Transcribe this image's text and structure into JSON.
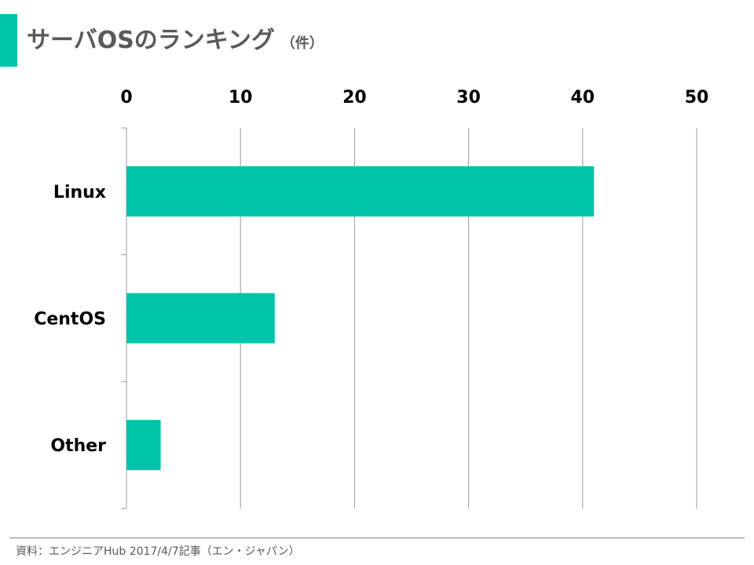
{
  "title": {
    "main": "サーバOSのランキング",
    "unit": "（件）"
  },
  "colors": {
    "accent": "#00c4a7",
    "bar": "#00c4a7",
    "text": "#000000",
    "title_text": "#595959",
    "gridline": "#999999"
  },
  "chart_data": {
    "type": "bar",
    "orientation": "horizontal",
    "categories": [
      "Linux",
      "CentOS",
      "Other"
    ],
    "values": [
      41,
      13,
      3
    ],
    "xlim": [
      0,
      50
    ],
    "ticks": [
      0,
      10,
      20,
      30,
      40,
      50
    ],
    "tick_labels": [
      "0",
      "10",
      "20",
      "30",
      "40",
      "50"
    ],
    "axis_position": "top",
    "grid": true
  },
  "source": "資料：エンジニアHub 2017/4/7記事（エン・ジャパン）"
}
